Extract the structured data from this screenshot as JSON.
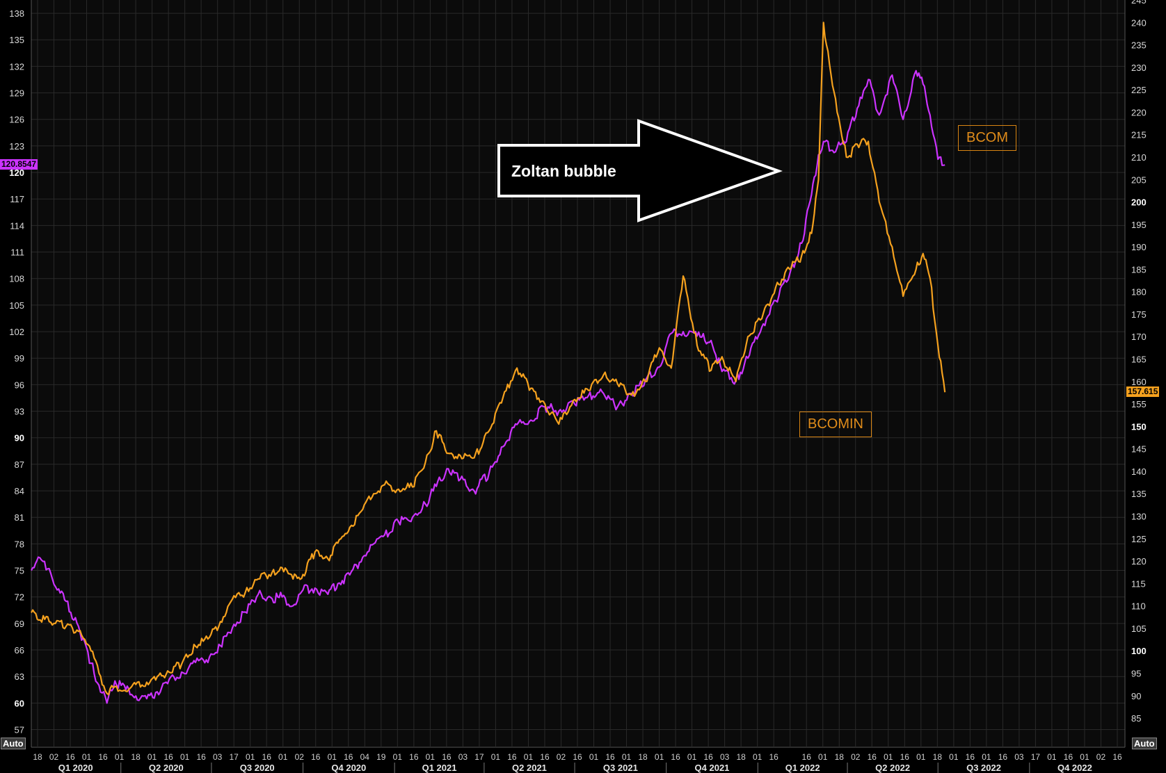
{
  "chart_data": {
    "type": "line",
    "title": "",
    "xlabel": "",
    "ylabel_left": "",
    "ylabel_right": "",
    "x_start": "2020-01-02",
    "x_end": "2022-12-31",
    "y_left": {
      "range": [
        55.0,
        139.5
      ],
      "ticks": [
        57,
        60,
        63,
        66,
        69,
        72,
        75,
        78,
        81,
        84,
        87,
        90,
        93,
        96,
        99,
        102,
        105,
        108,
        111,
        114,
        117,
        120,
        123,
        126,
        129,
        132,
        135,
        138
      ],
      "bold_ticks": [
        60,
        90,
        120
      ]
    },
    "y_right": {
      "range": [
        78.5,
        245
      ],
      "ticks": [
        85,
        90,
        95,
        100,
        105,
        110,
        115,
        120,
        125,
        130,
        135,
        140,
        145,
        150,
        155,
        160,
        165,
        170,
        175,
        180,
        185,
        190,
        195,
        200,
        205,
        210,
        215,
        220,
        225,
        230,
        235,
        240,
        245
      ],
      "bold_ticks": [
        100,
        150,
        200
      ]
    },
    "grid": true,
    "x_ticks_top": [
      "18",
      "02",
      "16",
      "01",
      "16",
      "01",
      "18",
      "01",
      "16",
      "01",
      "16",
      "03",
      "17",
      "01",
      "16",
      "01",
      "02",
      "16",
      "01",
      "16",
      "04",
      "19",
      "01",
      "16",
      "01",
      "16",
      "03",
      "17",
      "01",
      "16",
      "01",
      "16",
      "02",
      "16",
      "01",
      "16",
      "01",
      "18",
      "01",
      "16",
      "01",
      "16",
      "03",
      "18",
      "01",
      "16",
      "",
      "16",
      "01",
      "18",
      "02",
      "16",
      "01",
      "16",
      "01",
      "18",
      "01",
      "16",
      "01",
      "16",
      "03",
      "17",
      "01",
      "16",
      "01",
      "02",
      "16"
    ],
    "x_quarters": [
      "Q1 2020",
      "Q2 2020",
      "Q3 2020",
      "Q4 2020",
      "Q1 2021",
      "Q2 2021",
      "Q3 2021",
      "Q4 2021",
      "Q1 2022",
      "Q2 2022",
      "Q3 2022",
      "Q4 2022"
    ],
    "series": [
      {
        "name": "BCOM",
        "axis": "left",
        "color": "#cc33ff",
        "last_value_label": "120.8547",
        "points": [
          [
            "2020-01-02",
            75.0
          ],
          [
            "2020-01-09",
            76.5
          ],
          [
            "2020-01-20",
            75.2
          ],
          [
            "2020-01-28",
            72.8
          ],
          [
            "2020-02-06",
            71.5
          ],
          [
            "2020-02-20",
            68.0
          ],
          [
            "2020-03-02",
            64.5
          ],
          [
            "2020-03-10",
            62.0
          ],
          [
            "2020-03-18",
            60.0
          ],
          [
            "2020-03-26",
            62.5
          ],
          [
            "2020-04-06",
            61.5
          ],
          [
            "2020-04-16",
            60.8
          ],
          [
            "2020-04-27",
            60.5
          ],
          [
            "2020-05-06",
            61.2
          ],
          [
            "2020-05-18",
            62.2
          ],
          [
            "2020-06-01",
            63.5
          ],
          [
            "2020-06-15",
            64.6
          ],
          [
            "2020-06-29",
            65.2
          ],
          [
            "2020-07-10",
            66.5
          ],
          [
            "2020-07-22",
            68.5
          ],
          [
            "2020-08-04",
            70.3
          ],
          [
            "2020-08-17",
            72.3
          ],
          [
            "2020-08-31",
            71.8
          ],
          [
            "2020-09-10",
            72.0
          ],
          [
            "2020-09-21",
            71.0
          ],
          [
            "2020-10-01",
            72.8
          ],
          [
            "2020-10-13",
            73.0
          ],
          [
            "2020-10-26",
            72.3
          ],
          [
            "2020-11-05",
            73.5
          ],
          [
            "2020-11-17",
            74.5
          ],
          [
            "2020-11-30",
            76.5
          ],
          [
            "2020-12-11",
            78.0
          ],
          [
            "2020-12-22",
            79.0
          ],
          [
            "2021-01-05",
            80.5
          ],
          [
            "2021-01-19",
            81.0
          ],
          [
            "2021-02-01",
            82.5
          ],
          [
            "2021-02-12",
            84.5
          ],
          [
            "2021-02-24",
            86.5
          ],
          [
            "2021-03-08",
            85.3
          ],
          [
            "2021-03-22",
            84.0
          ],
          [
            "2021-04-06",
            86.0
          ],
          [
            "2021-04-20",
            89.0
          ],
          [
            "2021-05-04",
            91.5
          ],
          [
            "2021-05-18",
            92.0
          ],
          [
            "2021-06-01",
            93.5
          ],
          [
            "2021-06-15",
            93.0
          ],
          [
            "2021-07-01",
            93.8
          ],
          [
            "2021-07-15",
            94.8
          ],
          [
            "2021-07-30",
            95.0
          ],
          [
            "2021-08-13",
            93.5
          ],
          [
            "2021-08-27",
            95.0
          ],
          [
            "2021-09-10",
            96.5
          ],
          [
            "2021-09-24",
            98.0
          ],
          [
            "2021-10-06",
            101.8
          ],
          [
            "2021-10-18",
            102.0
          ],
          [
            "2021-11-01",
            101.5
          ],
          [
            "2021-11-15",
            101.0
          ],
          [
            "2021-11-26",
            97.5
          ],
          [
            "2021-12-10",
            96.5
          ],
          [
            "2021-12-22",
            99.0
          ],
          [
            "2022-01-05",
            102.5
          ],
          [
            "2022-01-19",
            105.5
          ],
          [
            "2022-02-02",
            108.5
          ],
          [
            "2022-02-14",
            112.0
          ],
          [
            "2022-02-24",
            117.5
          ],
          [
            "2022-03-03",
            122.0
          ],
          [
            "2022-03-08",
            123.5
          ],
          [
            "2022-03-17",
            122.5
          ],
          [
            "2022-03-31",
            123.5
          ],
          [
            "2022-04-14",
            128.5
          ],
          [
            "2022-04-22",
            130.5
          ],
          [
            "2022-05-03",
            126.5
          ],
          [
            "2022-05-16",
            131.0
          ],
          [
            "2022-05-27",
            126.0
          ],
          [
            "2022-06-09",
            131.5
          ],
          [
            "2022-06-16",
            130.0
          ],
          [
            "2022-06-23",
            126.5
          ],
          [
            "2022-07-01",
            121.5
          ],
          [
            "2022-07-08",
            120.85
          ]
        ]
      },
      {
        "name": "BCOMIN",
        "axis": "right",
        "color": "#f5a11e",
        "last_value_label": "157.615",
        "points": [
          [
            "2020-01-02",
            108.5
          ],
          [
            "2020-01-20",
            106.5
          ],
          [
            "2020-02-06",
            105.5
          ],
          [
            "2020-02-20",
            104.5
          ],
          [
            "2020-03-02",
            100.0
          ],
          [
            "2020-03-10",
            95.0
          ],
          [
            "2020-03-18",
            90.5
          ],
          [
            "2020-03-26",
            92.0
          ],
          [
            "2020-04-06",
            91.0
          ],
          [
            "2020-04-16",
            92.5
          ],
          [
            "2020-04-27",
            93.0
          ],
          [
            "2020-05-06",
            93.5
          ],
          [
            "2020-05-18",
            95.5
          ],
          [
            "2020-06-01",
            97.0
          ],
          [
            "2020-06-15",
            101.0
          ],
          [
            "2020-06-29",
            103.0
          ],
          [
            "2020-07-10",
            106.5
          ],
          [
            "2020-07-22",
            111.5
          ],
          [
            "2020-08-04",
            113.0
          ],
          [
            "2020-08-17",
            116.0
          ],
          [
            "2020-08-31",
            117.5
          ],
          [
            "2020-09-10",
            118.5
          ],
          [
            "2020-09-21",
            116.0
          ],
          [
            "2020-10-01",
            117.0
          ],
          [
            "2020-10-13",
            122.0
          ],
          [
            "2020-10-26",
            120.5
          ],
          [
            "2020-11-05",
            124.0
          ],
          [
            "2020-11-17",
            127.5
          ],
          [
            "2020-11-30",
            131.5
          ],
          [
            "2020-12-11",
            135.0
          ],
          [
            "2020-12-22",
            137.0
          ],
          [
            "2021-01-05",
            136.0
          ],
          [
            "2021-01-19",
            136.5
          ],
          [
            "2021-02-01",
            142.0
          ],
          [
            "2021-02-12",
            149.0
          ],
          [
            "2021-02-24",
            144.0
          ],
          [
            "2021-03-08",
            143.5
          ],
          [
            "2021-03-22",
            143.0
          ],
          [
            "2021-04-06",
            149.0
          ],
          [
            "2021-04-20",
            156.5
          ],
          [
            "2021-05-04",
            163.0
          ],
          [
            "2021-05-18",
            158.5
          ],
          [
            "2021-06-01",
            155.0
          ],
          [
            "2021-06-15",
            150.5
          ],
          [
            "2021-07-01",
            156.0
          ],
          [
            "2021-07-15",
            158.0
          ],
          [
            "2021-07-30",
            161.5
          ],
          [
            "2021-08-13",
            159.5
          ],
          [
            "2021-08-27",
            157.0
          ],
          [
            "2021-09-10",
            160.0
          ],
          [
            "2021-09-24",
            167.5
          ],
          [
            "2021-10-06",
            163.0
          ],
          [
            "2021-10-18",
            183.5
          ],
          [
            "2021-11-01",
            168.0
          ],
          [
            "2021-11-15",
            162.5
          ],
          [
            "2021-11-26",
            165.5
          ],
          [
            "2021-12-10",
            160.0
          ],
          [
            "2021-12-22",
            170.0
          ],
          [
            "2022-01-05",
            174.0
          ],
          [
            "2022-01-19",
            181.0
          ],
          [
            "2022-02-02",
            185.0
          ],
          [
            "2022-02-14",
            188.0
          ],
          [
            "2022-02-24",
            193.0
          ],
          [
            "2022-03-03",
            205.0
          ],
          [
            "2022-03-08",
            240.0
          ],
          [
            "2022-03-17",
            226.0
          ],
          [
            "2022-03-31",
            210.0
          ],
          [
            "2022-04-14",
            213.0
          ],
          [
            "2022-04-22",
            213.5
          ],
          [
            "2022-05-03",
            200.0
          ],
          [
            "2022-05-16",
            190.0
          ],
          [
            "2022-05-27",
            179.0
          ],
          [
            "2022-06-09",
            185.0
          ],
          [
            "2022-06-16",
            188.5
          ],
          [
            "2022-06-23",
            183.0
          ],
          [
            "2022-07-01",
            168.0
          ],
          [
            "2022-07-08",
            157.615
          ]
        ]
      }
    ]
  },
  "annotations": {
    "arrow_label": "Zoltan bubble",
    "legend_bcom": "BCOM",
    "legend_bcomin": "BCOMIN"
  },
  "controls": {
    "auto_left": "Auto",
    "auto_right": "Auto"
  },
  "colors": {
    "background": "#000000",
    "plot_background": "#0b0b0b",
    "grid": "#2a2a2a",
    "bcom": "#cc33ff",
    "bcomin": "#f5a11e",
    "legend_border": "#d98512"
  }
}
